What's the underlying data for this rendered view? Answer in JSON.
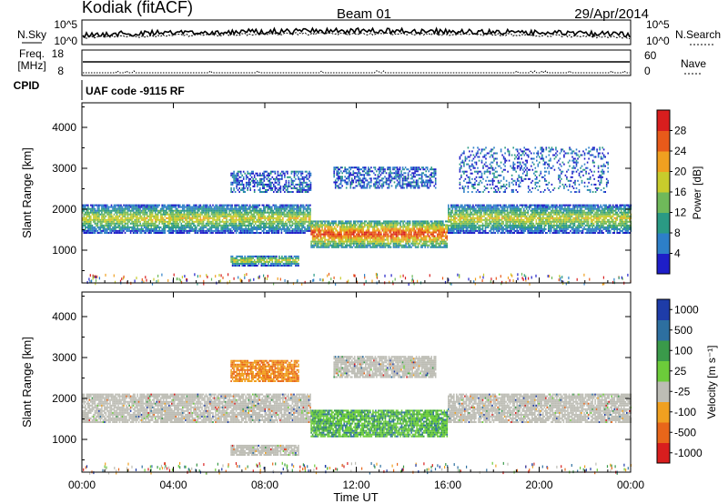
{
  "header": {
    "station": "Kodiak (fitACF)",
    "beam": "Beam 01",
    "date": "29/Apr/2014"
  },
  "strips": {
    "nsky": {
      "left_label": "N.Sky",
      "right_label": "N.Search",
      "left_ticks": [
        "10^5",
        "10^0"
      ],
      "right_ticks": [
        "10^5",
        "10^0"
      ]
    },
    "freq": {
      "left_label_1": "Freq.",
      "left_label_2": "[MHz]",
      "right_label": "Nave",
      "left_ticks": [
        "18",
        "8"
      ],
      "right_ticks": [
        "60",
        "0"
      ]
    },
    "cpid": {
      "label": "CPID",
      "text": "UAF code -9115 RF"
    }
  },
  "chart_data": [
    {
      "type": "heatmap",
      "title": "",
      "xlabel": "Time UT",
      "ylabel": "Slant Range [km]",
      "x_ticks": [
        "00:00",
        "04:00",
        "08:00",
        "12:00",
        "16:00",
        "20:00",
        "00:00"
      ],
      "xlim_hours": [
        0,
        24
      ],
      "y_ticks": [
        1000,
        2000,
        3000,
        4000
      ],
      "ylim": [
        200,
        4600
      ],
      "colorbar": {
        "label": "Power [dB]",
        "ticks": [
          "4",
          "8",
          "12",
          "16",
          "20",
          "24",
          "28"
        ],
        "range": [
          0,
          30
        ],
        "colors": [
          "#1e1ec8",
          "#2d7fc8",
          "#2a9a84",
          "#6fb95a",
          "#c8cc2c",
          "#f0a020",
          "#e85a1a",
          "#d81e1e"
        ]
      },
      "regions": [
        {
          "t": [
            0.0,
            10.0
          ],
          "r": [
            1400,
            2100
          ],
          "level": "medium"
        },
        {
          "t": [
            10.0,
            16.0
          ],
          "r": [
            1050,
            1700
          ],
          "level": "high"
        },
        {
          "t": [
            16.0,
            24.0
          ],
          "r": [
            1400,
            2100
          ],
          "level": "medium"
        },
        {
          "t": [
            6.5,
            9.5
          ],
          "r": [
            600,
            850
          ],
          "level": "medium"
        },
        {
          "t": [
            6.5,
            10.0
          ],
          "r": [
            2400,
            2900
          ],
          "level": "low"
        },
        {
          "t": [
            11.0,
            15.5
          ],
          "r": [
            2500,
            3000
          ],
          "level": "low"
        },
        {
          "t": [
            16.5,
            23.0
          ],
          "r": [
            2400,
            3500
          ],
          "level": "sparse"
        }
      ]
    },
    {
      "type": "heatmap",
      "title": "",
      "xlabel": "Time UT",
      "ylabel": "Slant Range [km]",
      "x_ticks": [
        "00:00",
        "04:00",
        "08:00",
        "12:00",
        "16:00",
        "20:00",
        "00:00"
      ],
      "xlim_hours": [
        0,
        24
      ],
      "y_ticks": [
        1000,
        2000,
        3000,
        4000
      ],
      "ylim": [
        200,
        4600
      ],
      "colorbar": {
        "label": "Velocity [m s⁻¹]",
        "ticks": [
          "1000",
          "500",
          "100",
          "25",
          "-25",
          "-100",
          "-500",
          "-1000"
        ],
        "colors": [
          "#1e3ca8",
          "#2d6fa0",
          "#3a9a4a",
          "#6ccc3a",
          "#bdbdb5",
          "#f0a020",
          "#e8661a",
          "#d81e1e"
        ]
      },
      "regions": [
        {
          "t": [
            0.0,
            10.0
          ],
          "r": [
            1400,
            2100
          ],
          "level": "ground-scatter"
        },
        {
          "t": [
            10.0,
            16.0
          ],
          "r": [
            1050,
            1700
          ],
          "level": "positive"
        },
        {
          "t": [
            16.0,
            24.0
          ],
          "r": [
            1400,
            2100
          ],
          "level": "ground-scatter"
        },
        {
          "t": [
            6.5,
            9.5
          ],
          "r": [
            600,
            850
          ],
          "level": "ground-scatter"
        },
        {
          "t": [
            6.5,
            9.5
          ],
          "r": [
            2400,
            2900
          ],
          "level": "negative"
        },
        {
          "t": [
            11.0,
            15.5
          ],
          "r": [
            2500,
            3000
          ],
          "level": "ground-scatter"
        }
      ]
    }
  ]
}
